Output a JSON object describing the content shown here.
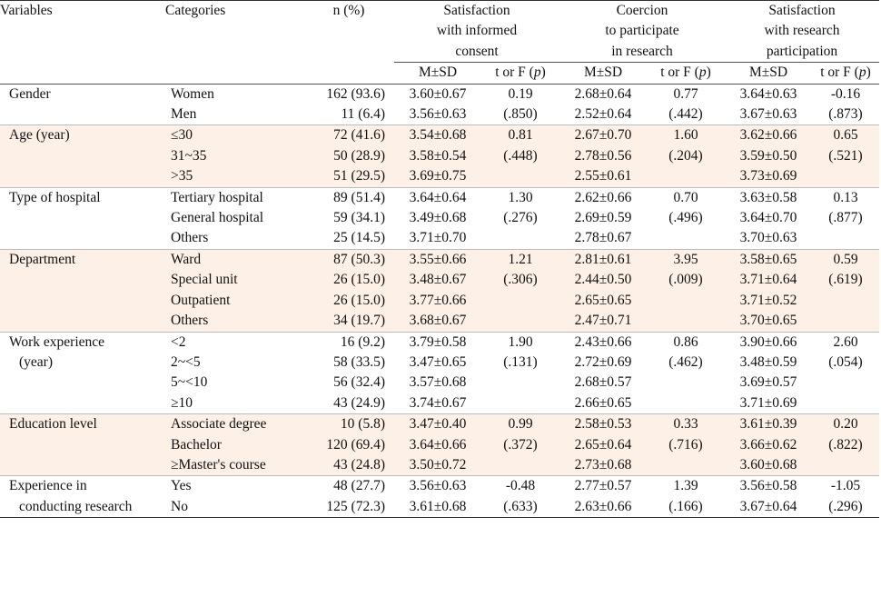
{
  "header": {
    "variables": "Variables",
    "categories": "Categories",
    "n_pct": "n (%)",
    "groups": [
      {
        "lines": [
          "Satisfaction",
          "with informed",
          "consent"
        ]
      },
      {
        "lines": [
          "Coercion",
          "to participate",
          "in research"
        ]
      },
      {
        "lines": [
          "Satisfaction",
          "with research",
          "participation"
        ]
      }
    ],
    "msd": "M±SD",
    "tf_prefix": "t or F (",
    "tf_p": "p",
    "tf_suffix": ")"
  },
  "rows": [
    {
      "variable": [
        "Gender"
      ],
      "categories": [
        "Women",
        "Men"
      ],
      "n": [
        "162 (93.6)",
        "11 (6.4)"
      ],
      "g1_msd": [
        "3.60±0.67",
        "3.56±0.63"
      ],
      "g1_tf": [
        "0.19",
        "(.850)"
      ],
      "g2_msd": [
        "2.68±0.64",
        "2.52±0.64"
      ],
      "g2_tf": [
        "0.77",
        "(.442)"
      ],
      "g3_msd": [
        "3.64±0.63",
        "3.67±0.63"
      ],
      "g3_tf": [
        "-0.16",
        "(.873)"
      ]
    },
    {
      "variable": [
        "Age (year)"
      ],
      "categories": [
        "≤30",
        "31~35",
        ">35"
      ],
      "n": [
        "72 (41.6)",
        "50 (28.9)",
        "51 (29.5)"
      ],
      "g1_msd": [
        "3.54±0.68",
        "3.58±0.54",
        "3.69±0.75"
      ],
      "g1_tf": [
        "0.81",
        "(.448)"
      ],
      "g2_msd": [
        "2.67±0.70",
        "2.78±0.56",
        "2.55±0.61"
      ],
      "g2_tf": [
        "1.60",
        "(.204)"
      ],
      "g3_msd": [
        "3.62±0.66",
        "3.59±0.50",
        "3.73±0.69"
      ],
      "g3_tf": [
        "0.65",
        "(.521)"
      ]
    },
    {
      "variable": [
        "Type of hospital"
      ],
      "categories": [
        "Tertiary hospital",
        "General hospital",
        "Others"
      ],
      "n": [
        "89 (51.4)",
        "59 (34.1)",
        "25 (14.5)"
      ],
      "g1_msd": [
        "3.64±0.64",
        "3.49±0.68",
        "3.71±0.70"
      ],
      "g1_tf": [
        "1.30",
        "(.276)"
      ],
      "g2_msd": [
        "2.62±0.66",
        "2.69±0.59",
        "2.78±0.67"
      ],
      "g2_tf": [
        "0.70",
        "(.496)"
      ],
      "g3_msd": [
        "3.63±0.58",
        "3.64±0.70",
        "3.70±0.63"
      ],
      "g3_tf": [
        "0.13",
        "(.877)"
      ]
    },
    {
      "variable": [
        "Department"
      ],
      "categories": [
        "Ward",
        "Special unit",
        "Outpatient",
        "Others"
      ],
      "n": [
        "87 (50.3)",
        "26 (15.0)",
        "26 (15.0)",
        "34 (19.7)"
      ],
      "g1_msd": [
        "3.55±0.66",
        "3.48±0.67",
        "3.77±0.66",
        "3.68±0.67"
      ],
      "g1_tf": [
        "1.21",
        "(.306)"
      ],
      "g2_msd": [
        "2.81±0.61",
        "2.44±0.50",
        "2.65±0.65",
        "2.47±0.71"
      ],
      "g2_tf": [
        "3.95",
        "(.009)"
      ],
      "g3_msd": [
        "3.58±0.65",
        "3.71±0.64",
        "3.71±0.52",
        "3.70±0.65"
      ],
      "g3_tf": [
        "0.59",
        "(.619)"
      ]
    },
    {
      "variable": [
        "Work experience",
        "(year)"
      ],
      "categories": [
        "<2",
        "2~<5",
        "5~<10",
        "≥10"
      ],
      "n": [
        "16 (9.2)",
        "58 (33.5)",
        "56 (32.4)",
        "43 (24.9)"
      ],
      "g1_msd": [
        "3.79±0.58",
        "3.47±0.65",
        "3.57±0.68",
        "3.74±0.67"
      ],
      "g1_tf": [
        "1.90",
        "(.131)"
      ],
      "g2_msd": [
        "2.43±0.66",
        "2.72±0.69",
        "2.68±0.57",
        "2.66±0.65"
      ],
      "g2_tf": [
        "0.86",
        "(.462)"
      ],
      "g3_msd": [
        "3.90±0.66",
        "3.48±0.59",
        "3.69±0.57",
        "3.71±0.69"
      ],
      "g3_tf": [
        "2.60",
        "(.054)"
      ]
    },
    {
      "variable": [
        "Education level"
      ],
      "categories": [
        "Associate degree",
        "Bachelor",
        "≥Master's course"
      ],
      "n": [
        "10 (5.8)",
        "120 (69.4)",
        "43 (24.8)"
      ],
      "g1_msd": [
        "3.47±0.40",
        "3.64±0.66",
        "3.50±0.72"
      ],
      "g1_tf": [
        "0.99",
        "(.372)"
      ],
      "g2_msd": [
        "2.58±0.53",
        "2.65±0.64",
        "2.73±0.68"
      ],
      "g2_tf": [
        "0.33",
        "(.716)"
      ],
      "g3_msd": [
        "3.61±0.39",
        "3.66±0.62",
        "3.60±0.68"
      ],
      "g3_tf": [
        "0.20",
        "(.822)"
      ]
    },
    {
      "variable": [
        "Experience in",
        "conducting research"
      ],
      "categories": [
        "Yes",
        "No"
      ],
      "n": [
        "48 (27.7)",
        "125 (72.3)"
      ],
      "g1_msd": [
        "3.56±0.63",
        "3.61±0.68"
      ],
      "g1_tf": [
        "-0.48",
        "(.633)"
      ],
      "g2_msd": [
        "2.77±0.57",
        "2.63±0.66"
      ],
      "g2_tf": [
        "1.39",
        "(.166)"
      ],
      "g3_msd": [
        "3.56±0.58",
        "3.67±0.64"
      ],
      "g3_tf": [
        "-1.05",
        "(.296)"
      ]
    }
  ]
}
